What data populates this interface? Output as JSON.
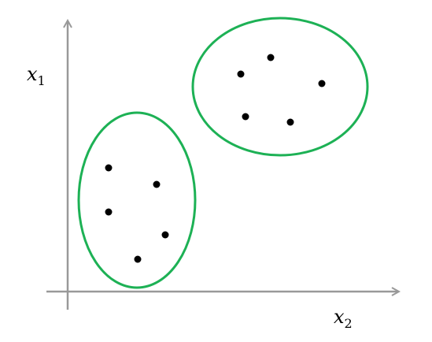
{
  "axes": {
    "vertical_label": {
      "var": "x",
      "sub": "1"
    },
    "horizontal_label": {
      "var": "x",
      "sub": "2"
    }
  },
  "clusters": [
    {
      "name": "cluster-bottom-left",
      "points": 5
    },
    {
      "name": "cluster-top-right",
      "points": 5
    }
  ],
  "colors": {
    "axis": "#999999",
    "cluster_outline": "#1db155",
    "point": "#000000"
  }
}
